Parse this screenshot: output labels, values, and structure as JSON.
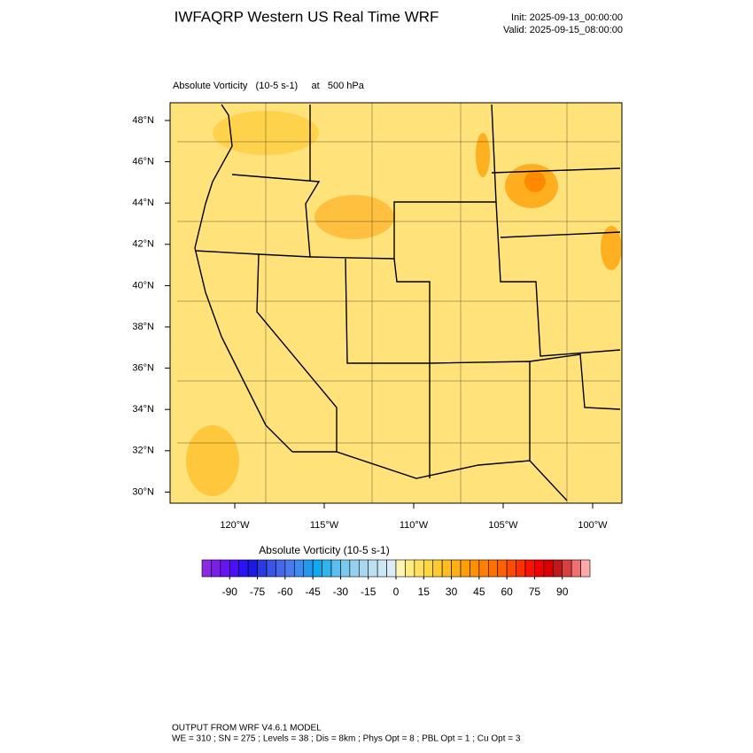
{
  "header": {
    "title": "IWFAQRP Western US Real Time WRF",
    "init": "Init: 2025-09-13_00:00:00",
    "valid": "Valid: 2025-09-15_08:00:00"
  },
  "plot": {
    "field_label": "Absolute Vorticity   (10-5 s-1)     at   500 hPa",
    "lat_labels": [
      "48°N",
      "46°N",
      "44°N",
      "42°N",
      "40°N",
      "38°N",
      "36°N",
      "34°N",
      "32°N",
      "30°N"
    ],
    "lon_labels": [
      "120°W",
      "115°W",
      "110°W",
      "105°W",
      "100°W"
    ]
  },
  "colorbar": {
    "title": "Absolute Vorticity  (10-5 s-1)",
    "lim": [
      -105,
      105
    ],
    "ticks": [
      -90,
      -75,
      -60,
      -45,
      -30,
      -15,
      0,
      15,
      30,
      45,
      60,
      75,
      90
    ],
    "colors": [
      "#8a2be2",
      "#7a1ee8",
      "#6515f0",
      "#4b10f5",
      "#2a14f5",
      "#1a1ae0",
      "#2a3ae0",
      "#3a55e4",
      "#4468e8",
      "#4a7aec",
      "#3a8cf0",
      "#2099ef",
      "#10a8ee",
      "#30b4ee",
      "#5cbeef",
      "#7cc8ef",
      "#94d0ef",
      "#a8d8f0",
      "#bcdff2",
      "#cce6f4",
      "#dcecf6",
      "#fff4b0",
      "#ffeb80",
      "#ffe060",
      "#ffd540",
      "#ffca30",
      "#ffbe20",
      "#ffb010",
      "#ffa000",
      "#ff9000",
      "#ff8000",
      "#ff7000",
      "#ff6000",
      "#ff4a00",
      "#ff3000",
      "#ff1000",
      "#f00000",
      "#d80000",
      "#c01818",
      "#d84040",
      "#f07070",
      "#ffaaaa"
    ]
  },
  "footer": {
    "line1": "OUTPUT FROM WRF V4.6.1 MODEL",
    "line2": "WE = 310 ; SN = 275 ; Levels = 38 ; Dis = 8km ; Phys Opt = 8 ; PBL Opt = 1 ; Cu Opt = 3"
  }
}
